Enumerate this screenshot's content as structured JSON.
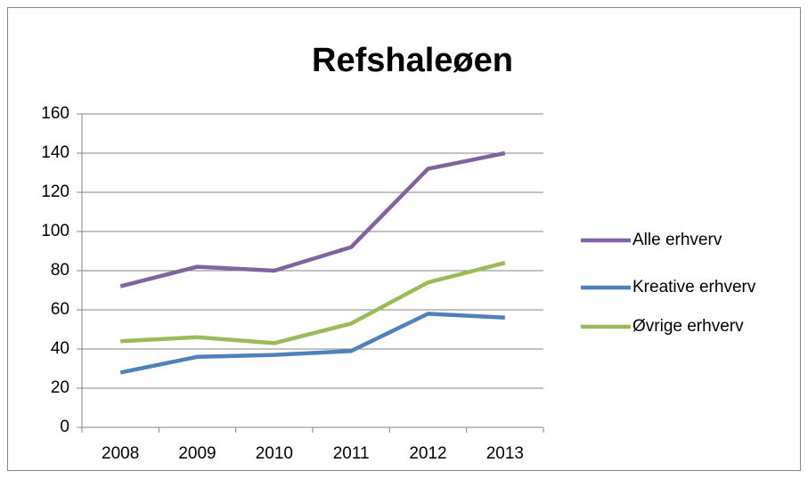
{
  "chart_data": {
    "type": "line",
    "title": "Refshaleøen",
    "categories": [
      "2008",
      "2009",
      "2010",
      "2011",
      "2012",
      "2013"
    ],
    "series": [
      {
        "name": "Alle erhverv",
        "color": "#8064a2",
        "values": [
          72,
          82,
          80,
          92,
          132,
          140
        ]
      },
      {
        "name": "Kreative erhverv",
        "color": "#4f81bd",
        "values": [
          28,
          36,
          37,
          39,
          58,
          56
        ]
      },
      {
        "name": "Øvrige erhverv",
        "color": "#9bbb59",
        "values": [
          44,
          46,
          43,
          53,
          74,
          84
        ]
      }
    ],
    "ylim": [
      0,
      160
    ],
    "yticks": [
      0,
      20,
      40,
      60,
      80,
      100,
      120,
      140,
      160
    ],
    "grid": true,
    "legend": "right"
  }
}
